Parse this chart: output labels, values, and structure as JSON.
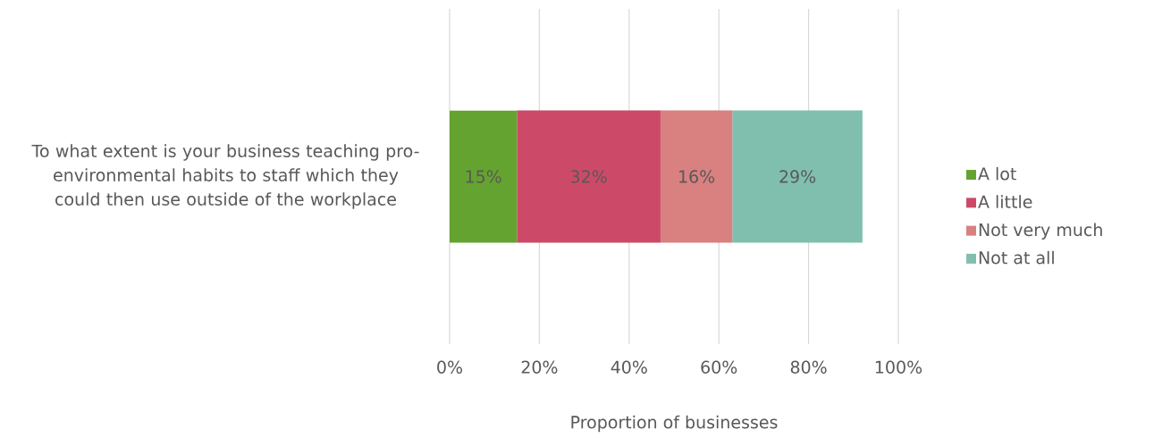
{
  "chart_data": {
    "type": "bar",
    "orientation": "horizontal",
    "stacked": true,
    "categories": [
      "To what extent is your business teaching pro-environmental habits to staff which they could then use outside of the workplace"
    ],
    "series": [
      {
        "name": "A lot",
        "color": "#65a330",
        "values": [
          15
        ],
        "value_labels": [
          "15%"
        ]
      },
      {
        "name": "A little",
        "color": "#cc4a68",
        "values": [
          32
        ],
        "value_labels": [
          "32%"
        ]
      },
      {
        "name": "Not very much",
        "color": "#d98080",
        "values": [
          16
        ],
        "value_labels": [
          "16%"
        ]
      },
      {
        "name": "Not at all",
        "color": "#80bfae",
        "values": [
          29
        ],
        "value_labels": [
          "29%"
        ]
      }
    ],
    "xlim": [
      0,
      100
    ],
    "xticks": [
      {
        "value": 0,
        "label": "0%"
      },
      {
        "value": 20,
        "label": "20%"
      },
      {
        "value": 40,
        "label": "40%"
      },
      {
        "value": 60,
        "label": "60%"
      },
      {
        "value": 80,
        "label": "80%"
      },
      {
        "value": 100,
        "label": "100%"
      }
    ],
    "xlabel": "Proportion of businesses",
    "grid": "x",
    "legend": "right"
  }
}
